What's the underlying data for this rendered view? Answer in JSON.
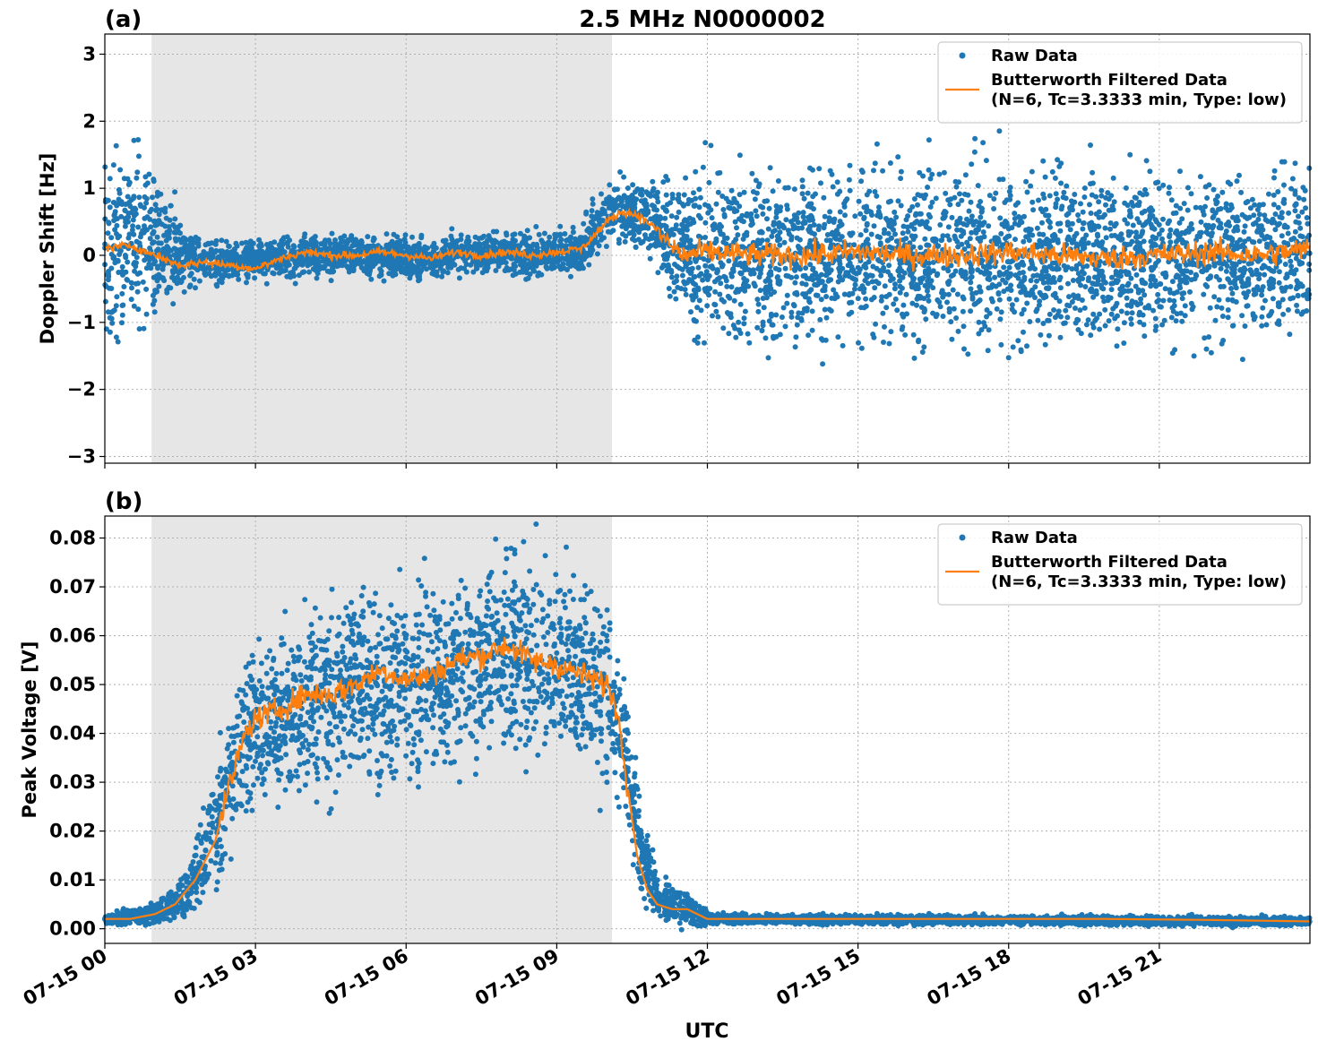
{
  "figure": {
    "title": "2.5 MHz N0000002",
    "xlabel": "UTC",
    "x_ticks": [
      "07-15 00",
      "07-15 03",
      "07-15 06",
      "07-15 09",
      "07-15 12",
      "07-15 15",
      "07-15 18",
      "07-15 21"
    ]
  },
  "colors": {
    "raw": "#1f77b4",
    "filtered": "#ff7f0e",
    "shade": "#e6e6e6",
    "grid": "#b0b0b0"
  },
  "chart_data": [
    {
      "type": "scatter",
      "panel_label": "(a)",
      "ylabel": "Doppler Shift [Hz]",
      "xlim_hours": [
        0,
        24
      ],
      "ylim": [
        -3.1,
        3.3
      ],
      "y_ticks": [
        -3,
        -2,
        -1,
        0,
        1,
        2,
        3
      ],
      "y_tick_labels": [
        "−3",
        "−2",
        "−1",
        "0",
        "1",
        "2",
        "3"
      ],
      "shaded_interval_hours": [
        0.93,
        10.1
      ],
      "grid": true,
      "legend": {
        "placement": "upper right",
        "entries": [
          "Raw Data",
          "Butterworth Filtered Data",
          "(N=6, Tc=3.3333 min, Type: low)"
        ]
      },
      "series": [
        {
          "name": "Raw Data",
          "kind": "scatter",
          "envelope_hours": [
            0,
            0.9,
            1.6,
            2.5,
            3.5,
            5.0,
            6.5,
            7.5,
            8.5,
            9.5,
            10.1,
            10.8,
            11.3,
            11.7,
            12.0,
            24.0
          ],
          "envelope_mean": [
            0.2,
            0.2,
            -0.05,
            -0.1,
            -0.05,
            0.0,
            -0.05,
            0.05,
            0.0,
            0.1,
            0.7,
            0.6,
            0.2,
            0.0,
            0.0,
            0.0
          ],
          "envelope_spread": [
            1.15,
            1.1,
            0.35,
            0.25,
            0.25,
            0.25,
            0.25,
            0.25,
            0.25,
            0.3,
            0.4,
            0.45,
            0.7,
            0.95,
            1.1,
            1.1
          ]
        },
        {
          "name": "Butterworth Filtered Data",
          "kind": "line",
          "x_hours": [
            0,
            0.5,
            1.0,
            1.5,
            2.0,
            2.5,
            3.0,
            3.5,
            4.0,
            4.5,
            5.0,
            5.5,
            6.0,
            6.5,
            7.0,
            7.5,
            8.0,
            8.5,
            9.0,
            9.5,
            10.0,
            10.3,
            10.6,
            10.9,
            11.2,
            11.5,
            12.0,
            13.0,
            14.0,
            15.0,
            16.0,
            17.0,
            18.0,
            19.0,
            20.0,
            21.0,
            22.0,
            23.0,
            24.0
          ],
          "y": [
            0.1,
            0.15,
            0.0,
            -0.15,
            -0.1,
            -0.15,
            -0.2,
            -0.05,
            0.05,
            0.0,
            0.0,
            0.05,
            0.0,
            -0.05,
            0.05,
            0.0,
            0.05,
            0.0,
            0.05,
            0.1,
            0.5,
            0.65,
            0.6,
            0.45,
            0.2,
            0.0,
            0.05,
            0.0,
            0.0,
            0.05,
            0.0,
            0.0,
            0.05,
            0.0,
            -0.05,
            0.0,
            0.05,
            0.0,
            0.1
          ],
          "noise_after_hour": 11.0,
          "noise_amplitude": 0.18
        }
      ]
    },
    {
      "type": "scatter",
      "panel_label": "(b)",
      "ylabel": "Peak Voltage [V]",
      "xlim_hours": [
        0,
        24
      ],
      "ylim": [
        -0.003,
        0.0845
      ],
      "y_ticks": [
        0.0,
        0.01,
        0.02,
        0.03,
        0.04,
        0.05,
        0.06,
        0.07,
        0.08
      ],
      "y_tick_labels": [
        "0.00",
        "0.01",
        "0.02",
        "0.03",
        "0.04",
        "0.05",
        "0.06",
        "0.07",
        "0.08"
      ],
      "shaded_interval_hours": [
        0.93,
        10.1
      ],
      "grid": true,
      "legend": {
        "placement": "upper right",
        "entries": [
          "Raw Data",
          "Butterworth Filtered Data",
          "(N=6, Tc=3.3333 min, Type: low)"
        ]
      },
      "series": [
        {
          "name": "Raw Data",
          "kind": "scatter",
          "envelope_hours": [
            0,
            1.0,
            1.4,
            1.8,
            2.2,
            2.6,
            3.0,
            4.0,
            5.0,
            6.0,
            7.0,
            8.0,
            9.0,
            10.0,
            10.4,
            10.7,
            11.0,
            11.3,
            11.6,
            12.0,
            12.5,
            24.0
          ],
          "envelope_mean": [
            0.002,
            0.003,
            0.005,
            0.01,
            0.02,
            0.035,
            0.042,
            0.045,
            0.05,
            0.05,
            0.052,
            0.057,
            0.055,
            0.05,
            0.035,
            0.015,
            0.007,
            0.005,
            0.004,
            0.002,
            0.002,
            0.0015
          ],
          "envelope_spread": [
            0.0008,
            0.002,
            0.003,
            0.006,
            0.01,
            0.013,
            0.014,
            0.016,
            0.016,
            0.016,
            0.016,
            0.017,
            0.016,
            0.015,
            0.012,
            0.008,
            0.004,
            0.003,
            0.003,
            0.001,
            0.0008,
            0.0008
          ]
        },
        {
          "name": "Butterworth Filtered Data",
          "kind": "line",
          "x_hours": [
            0,
            0.5,
            1.0,
            1.4,
            1.8,
            2.2,
            2.5,
            2.8,
            3.0,
            3.5,
            4.0,
            4.5,
            5.0,
            5.5,
            6.0,
            6.5,
            7.0,
            7.5,
            8.0,
            8.5,
            9.0,
            9.5,
            10.0,
            10.2,
            10.4,
            10.6,
            10.8,
            11.0,
            11.3,
            11.6,
            12.0,
            14.0,
            16.0,
            18.0,
            20.0,
            22.0,
            24.0
          ],
          "y": [
            0.002,
            0.002,
            0.003,
            0.005,
            0.01,
            0.018,
            0.03,
            0.04,
            0.043,
            0.045,
            0.048,
            0.048,
            0.05,
            0.053,
            0.051,
            0.052,
            0.055,
            0.056,
            0.058,
            0.055,
            0.054,
            0.052,
            0.05,
            0.045,
            0.03,
            0.015,
            0.008,
            0.005,
            0.004,
            0.004,
            0.002,
            0.002,
            0.002,
            0.002,
            0.002,
            0.0018,
            0.0015
          ],
          "noise_amplitude": 0.0025,
          "noise_until_hour": 10.4
        }
      ]
    }
  ]
}
